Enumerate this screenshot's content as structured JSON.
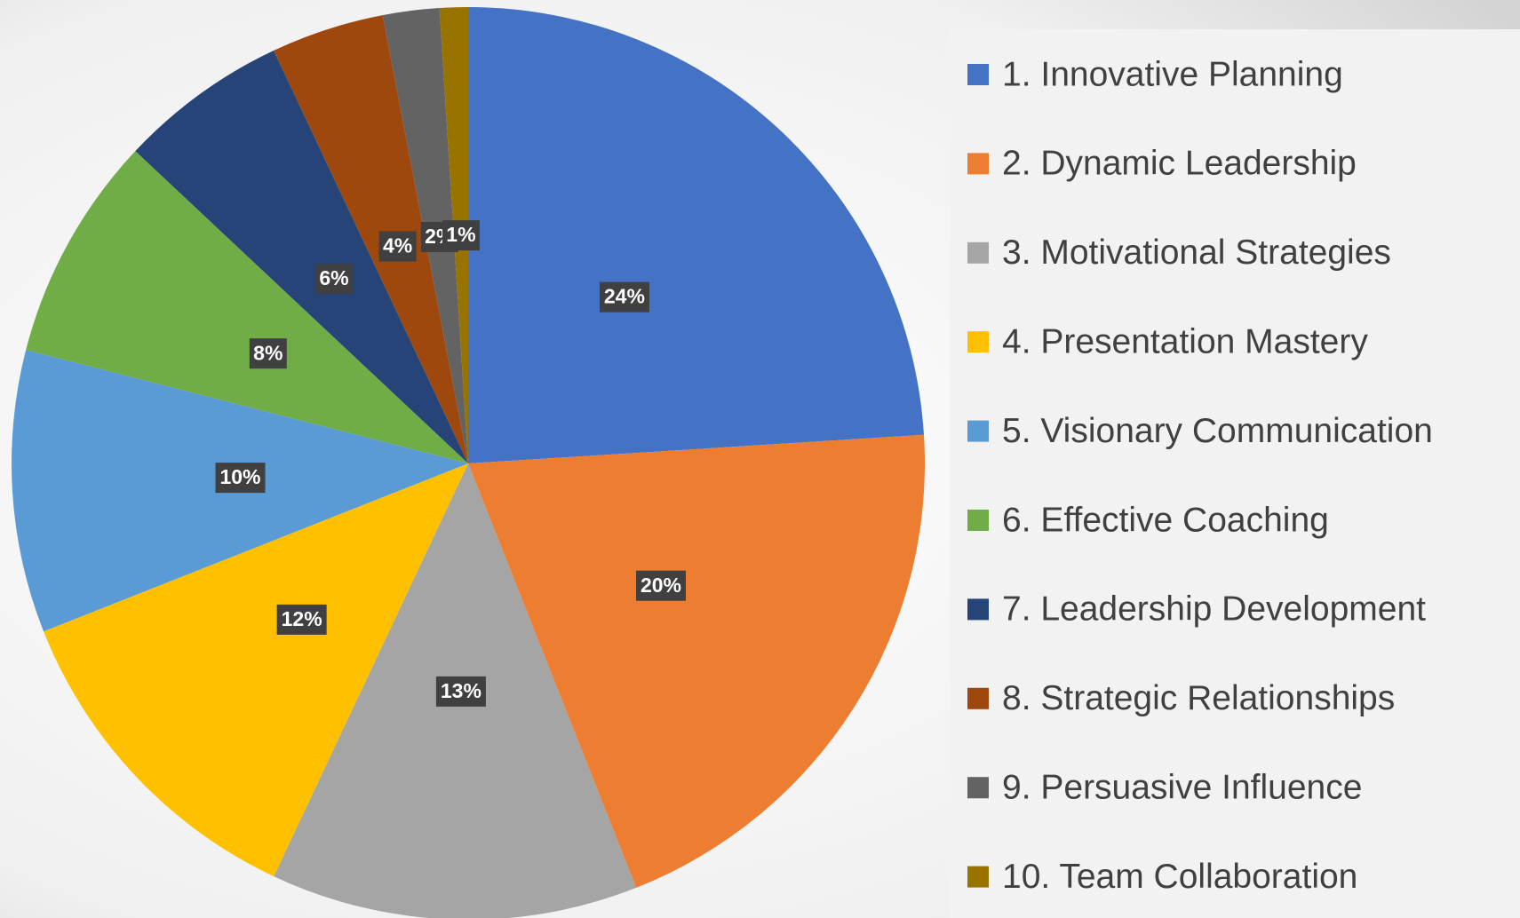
{
  "chart_data": {
    "type": "pie",
    "categories": [
      "1. Innovative Planning",
      "2. Dynamic Leadership",
      "3. Motivational Strategies",
      "4. Presentation Mastery",
      "5. Visionary Communication",
      "6. Effective Coaching",
      "7. Leadership Development",
      "8. Strategic Relationships",
      "9. Persuasive Influence",
      "10. Team Collaboration"
    ],
    "values": [
      24,
      20,
      13,
      12,
      10,
      8,
      6,
      4,
      2,
      1
    ],
    "value_labels": [
      "24%",
      "20%",
      "13%",
      "12%",
      "10%",
      "8%",
      "6%",
      "4%",
      "2%",
      "1%"
    ],
    "colors": [
      "#4472c4",
      "#ed7d31",
      "#a5a5a5",
      "#ffc000",
      "#5b9bd5",
      "#70ad47",
      "#264478",
      "#9e480e",
      "#636363",
      "#997300"
    ],
    "legend": "right"
  }
}
